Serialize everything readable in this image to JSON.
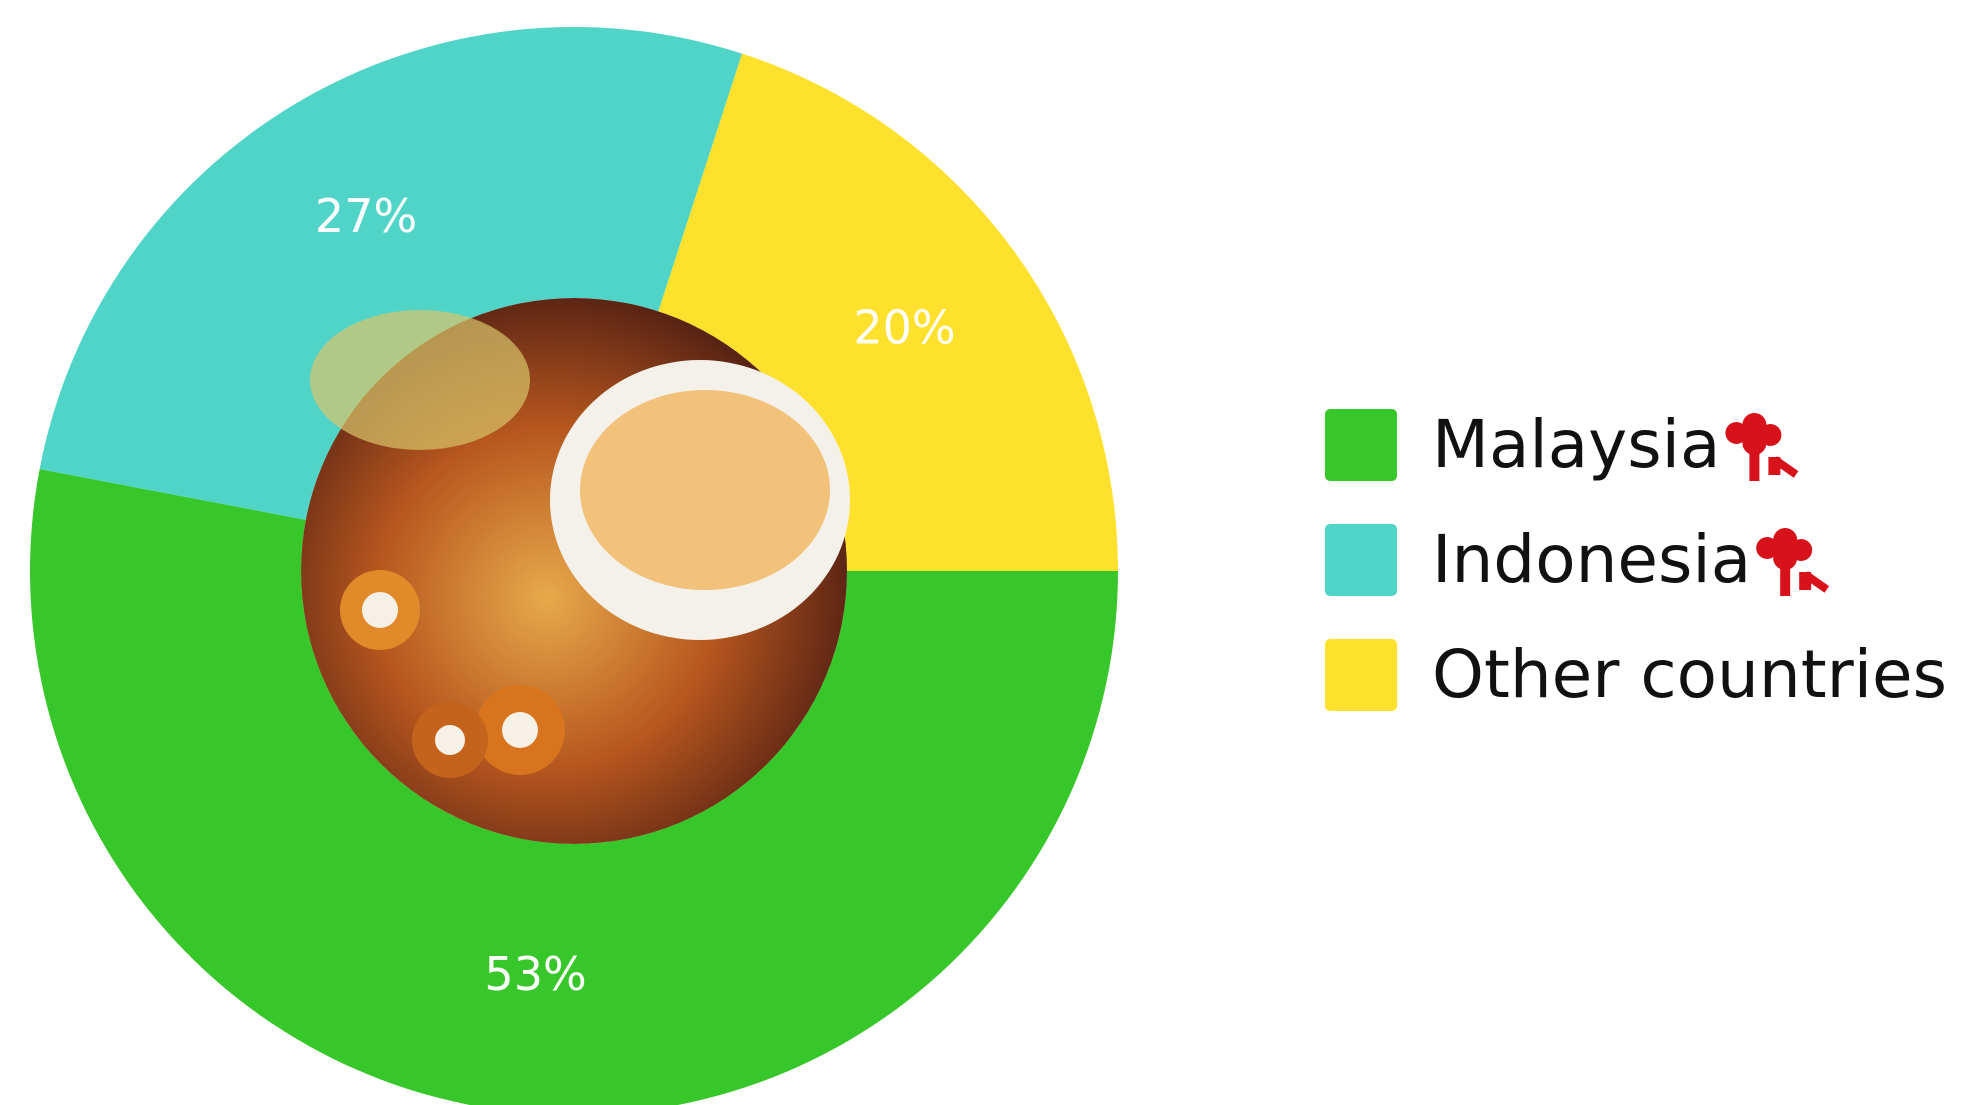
{
  "chart_data": {
    "type": "donut",
    "categories": [
      "Malaysia",
      "Indonesia",
      "Other countries"
    ],
    "values": [
      53,
      27,
      20
    ],
    "value_labels": [
      "53%",
      "27%",
      "20%"
    ],
    "colors": [
      "#38c72a",
      "#50d4c8",
      "#fde12d"
    ],
    "legend": "right"
  }
}
